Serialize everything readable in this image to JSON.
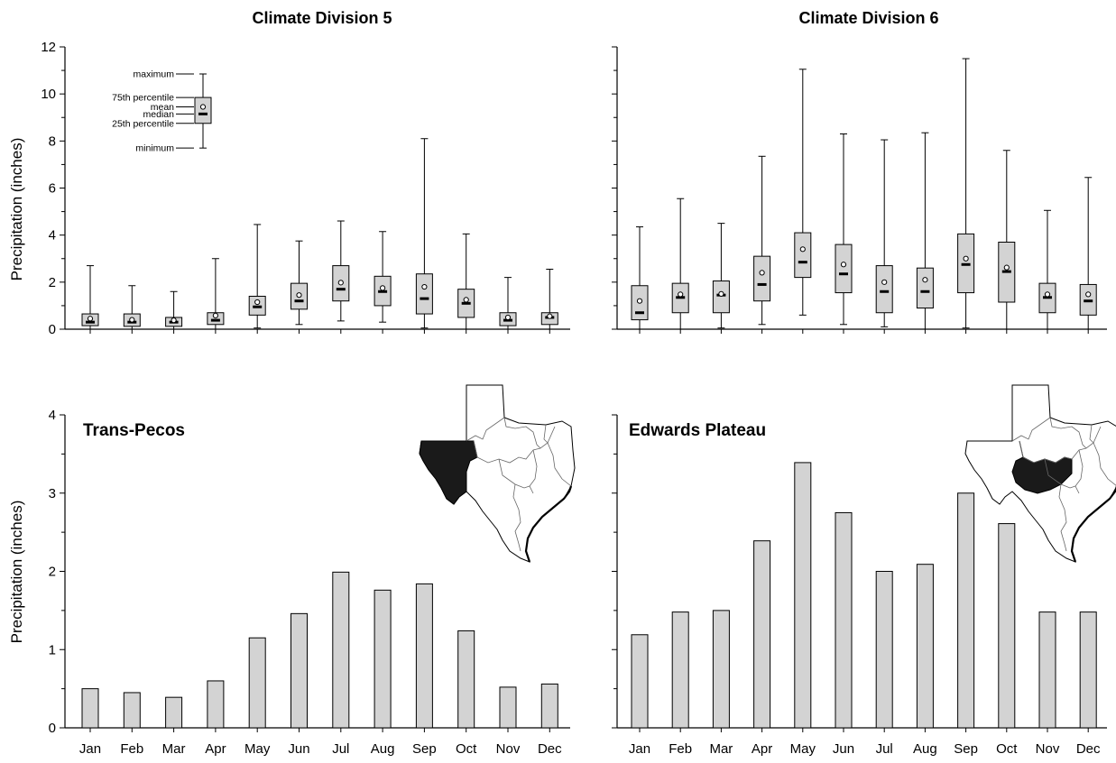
{
  "chart_data": [
    {
      "type": "box",
      "title": "Climate Division 5",
      "ylabel": "Precipitation (inches)",
      "ylim": [
        0,
        12
      ],
      "yticks": [
        "0",
        "2",
        "4",
        "6",
        "8",
        "10",
        "12"
      ],
      "categories": [
        "Jan",
        "Feb",
        "Mar",
        "Apr",
        "May",
        "Jun",
        "Jul",
        "Aug",
        "Sep",
        "Oct",
        "Nov",
        "Dec"
      ],
      "stats": [
        {
          "min": 0.0,
          "q1": 0.15,
          "median": 0.3,
          "mean": 0.45,
          "q3": 0.65,
          "max": 2.7
        },
        {
          "min": 0.0,
          "q1": 0.12,
          "median": 0.3,
          "mean": 0.4,
          "q3": 0.65,
          "max": 1.85
        },
        {
          "min": 0.0,
          "q1": 0.12,
          "median": 0.3,
          "mean": 0.38,
          "q3": 0.5,
          "max": 1.6
        },
        {
          "min": 0.0,
          "q1": 0.2,
          "median": 0.38,
          "mean": 0.58,
          "q3": 0.7,
          "max": 3.0
        },
        {
          "min": 0.05,
          "q1": 0.6,
          "median": 0.95,
          "mean": 1.15,
          "q3": 1.4,
          "max": 4.45
        },
        {
          "min": 0.2,
          "q1": 0.85,
          "median": 1.2,
          "mean": 1.45,
          "q3": 1.95,
          "max": 3.75
        },
        {
          "min": 0.35,
          "q1": 1.2,
          "median": 1.7,
          "mean": 1.98,
          "q3": 2.7,
          "max": 4.6
        },
        {
          "min": 0.3,
          "q1": 1.0,
          "median": 1.6,
          "mean": 1.75,
          "q3": 2.25,
          "max": 4.15
        },
        {
          "min": 0.05,
          "q1": 0.65,
          "median": 1.3,
          "mean": 1.8,
          "q3": 2.35,
          "max": 8.1
        },
        {
          "min": 0.0,
          "q1": 0.5,
          "median": 1.1,
          "mean": 1.25,
          "q3": 1.7,
          "max": 4.05
        },
        {
          "min": 0.0,
          "q1": 0.15,
          "median": 0.38,
          "mean": 0.5,
          "q3": 0.7,
          "max": 2.2
        },
        {
          "min": 0.0,
          "q1": 0.2,
          "median": 0.5,
          "mean": 0.55,
          "q3": 0.7,
          "max": 2.55
        }
      ],
      "legend": {
        "labels": [
          "maximum",
          "75th percentile",
          "mean",
          "median",
          "25th percentile",
          "minimum"
        ],
        "example": {
          "min": 7.7,
          "q1": 8.75,
          "median": 9.15,
          "mean": 9.45,
          "q3": 9.85,
          "max": 10.85
        }
      }
    },
    {
      "type": "box",
      "title": "Climate Division 6",
      "ylim": [
        0,
        12
      ],
      "categories": [
        "Jan",
        "Feb",
        "Mar",
        "Apr",
        "May",
        "Jun",
        "Jul",
        "Aug",
        "Sep",
        "Oct",
        "Nov",
        "Dec"
      ],
      "stats": [
        {
          "min": 0.0,
          "q1": 0.4,
          "median": 0.7,
          "mean": 1.2,
          "q3": 1.85,
          "max": 4.35
        },
        {
          "min": 0.0,
          "q1": 0.7,
          "median": 1.35,
          "mean": 1.48,
          "q3": 1.95,
          "max": 5.55
        },
        {
          "min": 0.05,
          "q1": 0.7,
          "median": 1.45,
          "mean": 1.5,
          "q3": 2.05,
          "max": 4.5
        },
        {
          "min": 0.2,
          "q1": 1.2,
          "median": 1.9,
          "mean": 2.4,
          "q3": 3.1,
          "max": 7.35
        },
        {
          "min": 0.6,
          "q1": 2.2,
          "median": 2.85,
          "mean": 3.4,
          "q3": 4.1,
          "max": 11.05
        },
        {
          "min": 0.2,
          "q1": 1.55,
          "median": 2.35,
          "mean": 2.75,
          "q3": 3.6,
          "max": 8.3
        },
        {
          "min": 0.1,
          "q1": 0.7,
          "median": 1.6,
          "mean": 2.0,
          "q3": 2.7,
          "max": 8.05
        },
        {
          "min": 0.0,
          "q1": 0.9,
          "median": 1.6,
          "mean": 2.1,
          "q3": 2.6,
          "max": 8.35
        },
        {
          "min": 0.05,
          "q1": 1.55,
          "median": 2.75,
          "mean": 3.0,
          "q3": 4.05,
          "max": 11.5
        },
        {
          "min": 0.0,
          "q1": 1.15,
          "median": 2.45,
          "mean": 2.62,
          "q3": 3.7,
          "max": 7.6
        },
        {
          "min": 0.0,
          "q1": 0.7,
          "median": 1.35,
          "mean": 1.48,
          "q3": 1.95,
          "max": 5.05
        },
        {
          "min": 0.0,
          "q1": 0.6,
          "median": 1.2,
          "mean": 1.48,
          "q3": 1.9,
          "max": 6.45
        }
      ]
    },
    {
      "type": "bar",
      "annotation": "Trans-Pecos",
      "ylabel": "Precipitation (inches)",
      "ylim": [
        0,
        4
      ],
      "yticks": [
        "0",
        "1",
        "2",
        "3",
        "4"
      ],
      "categories": [
        "Jan",
        "Feb",
        "Mar",
        "Apr",
        "May",
        "Jun",
        "Jul",
        "Aug",
        "Sep",
        "Oct",
        "Nov",
        "Dec"
      ],
      "values": [
        0.5,
        0.45,
        0.39,
        0.6,
        1.15,
        1.46,
        1.99,
        1.76,
        1.84,
        1.24,
        0.52,
        0.56
      ]
    },
    {
      "type": "bar",
      "annotation": "Edwards Plateau",
      "ylim": [
        0,
        4
      ],
      "categories": [
        "Jan",
        "Feb",
        "Mar",
        "Apr",
        "May",
        "Jun",
        "Jul",
        "Aug",
        "Sep",
        "Oct",
        "Nov",
        "Dec"
      ],
      "values": [
        1.19,
        1.48,
        1.5,
        2.39,
        3.39,
        2.75,
        2.0,
        2.09,
        3.0,
        2.61,
        1.48,
        1.48
      ]
    }
  ],
  "maps": {
    "left_icon": "texas-map-icon",
    "right_icon": "texas-map-icon",
    "highlight_color": "#1a1a1a",
    "box_fill": "#d3d3d3"
  }
}
